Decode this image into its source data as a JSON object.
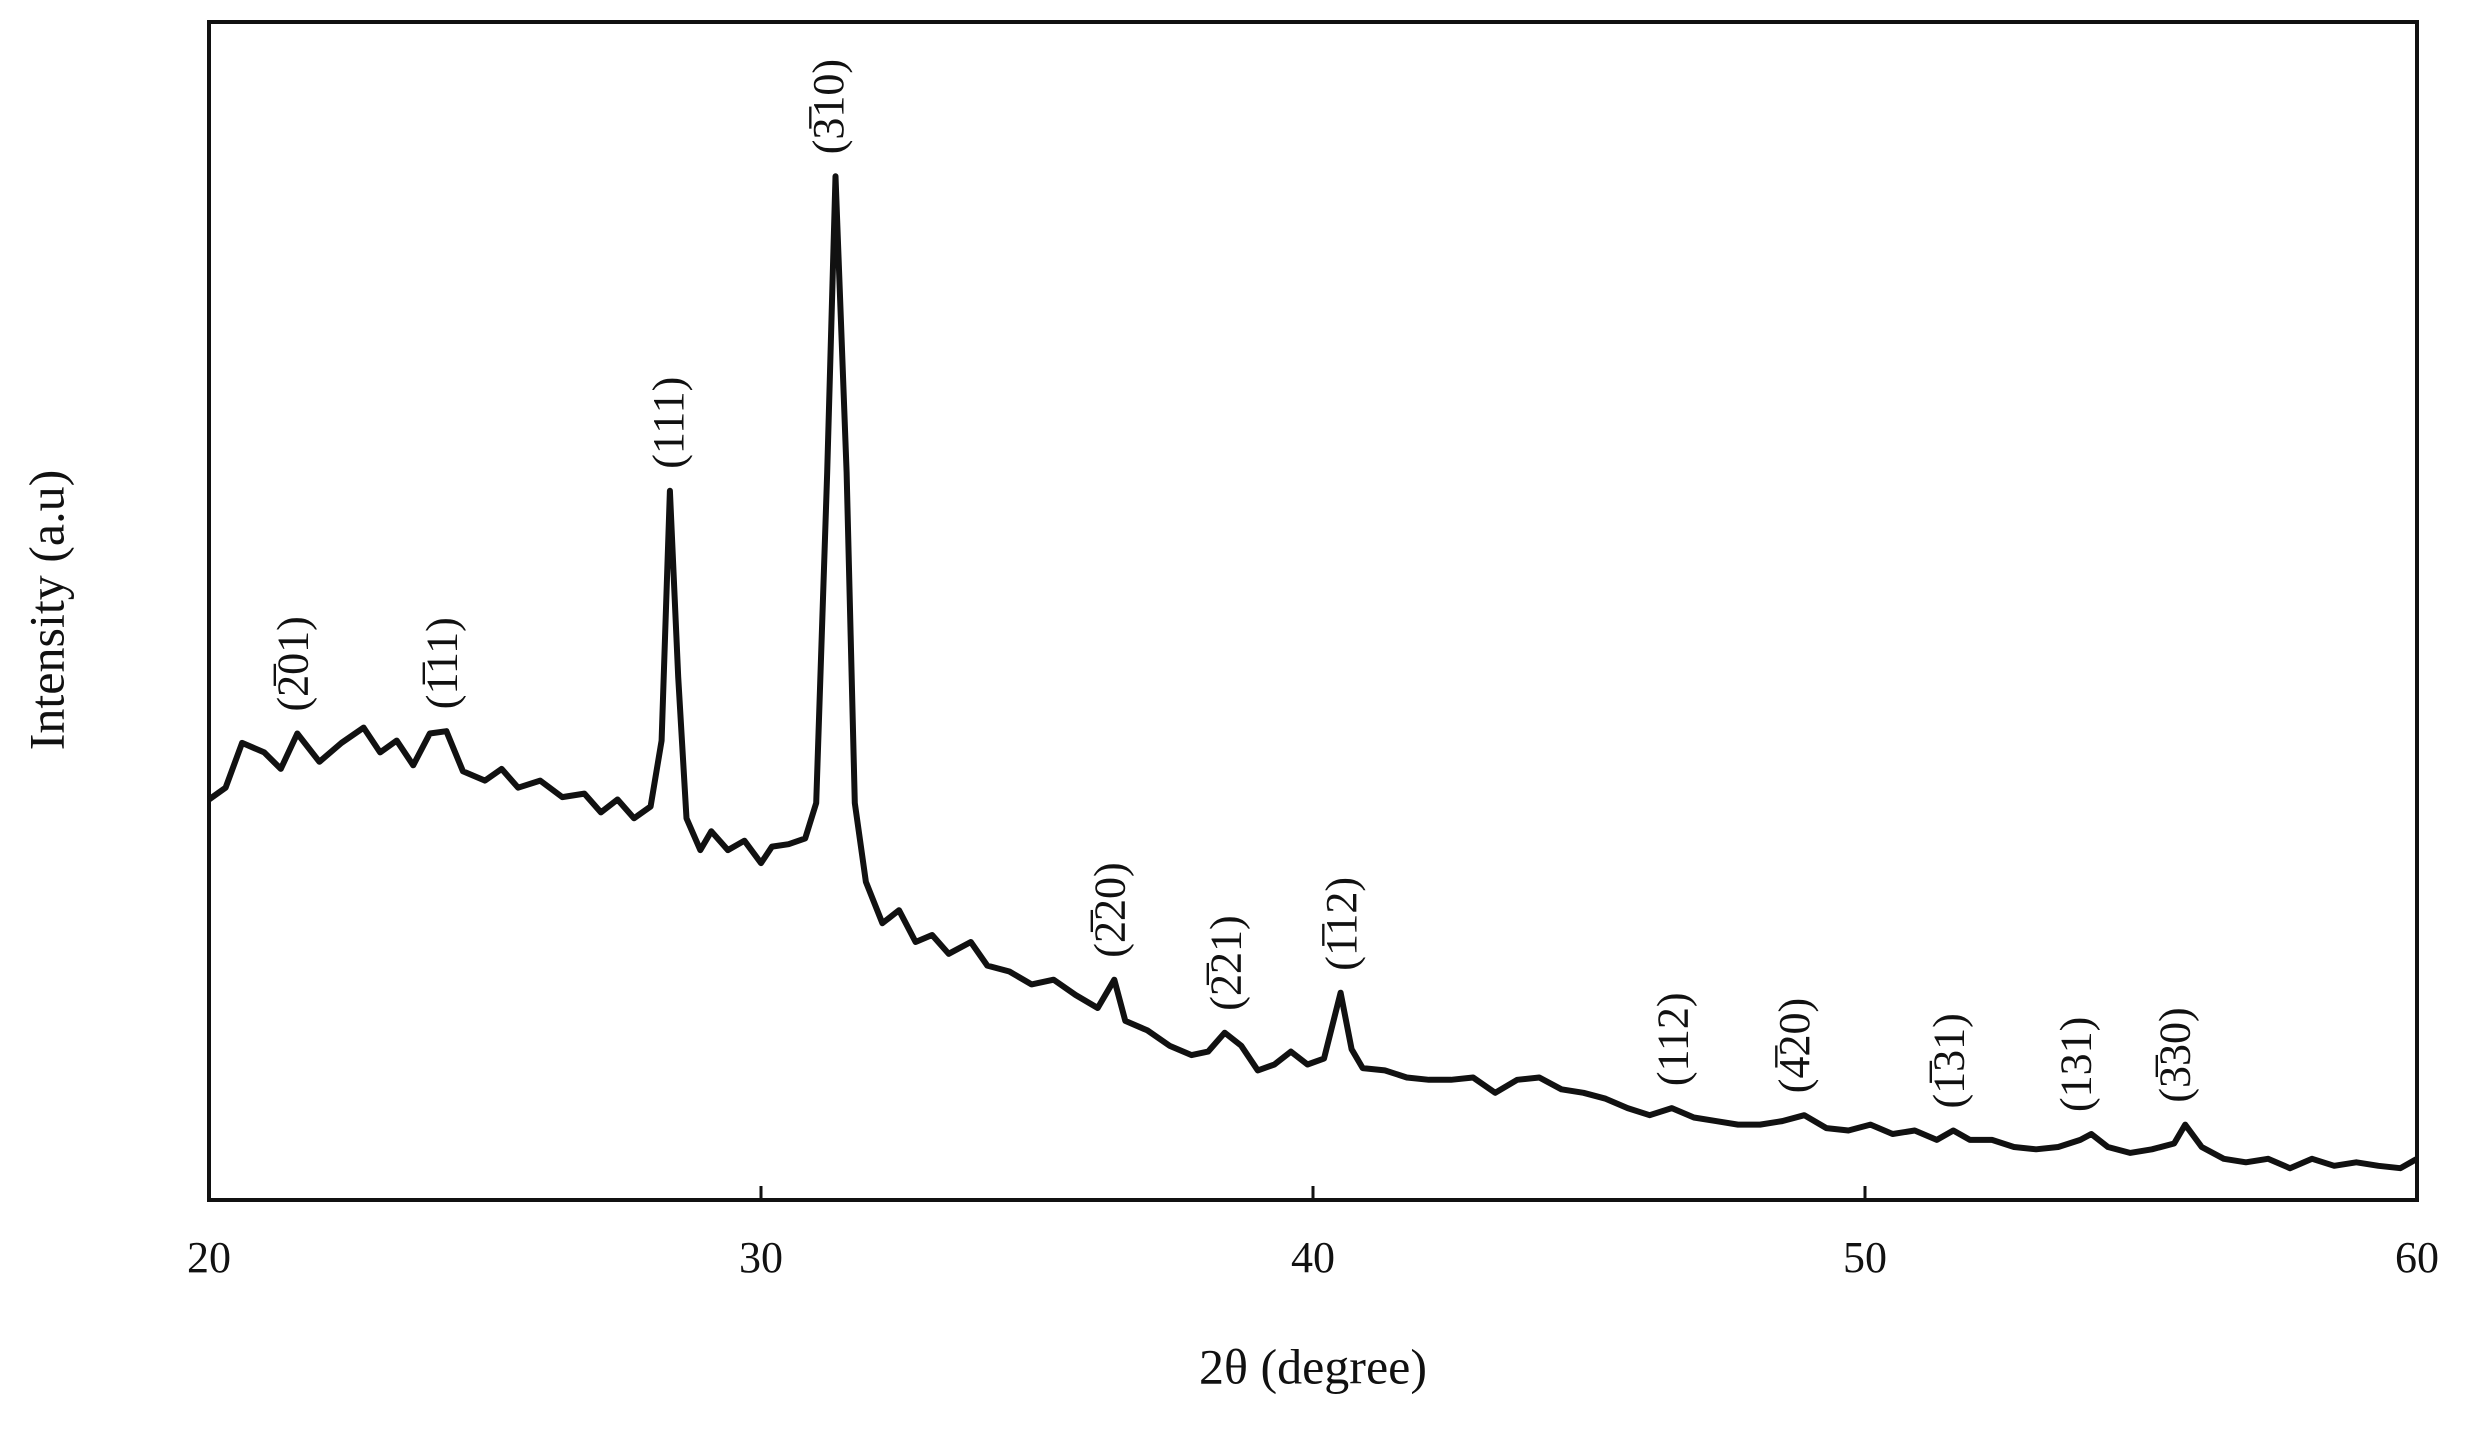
{
  "chart_data": {
    "type": "line",
    "x_label": "2θ (degree)",
    "y_label": "Intensity (a.u)",
    "xlim": [
      20,
      60
    ],
    "xticks": [
      20,
      30,
      40,
      50,
      60
    ],
    "ylim": [
      0,
      100
    ],
    "color": "#111111",
    "x": [
      20.0,
      20.3,
      20.6,
      21.0,
      21.3,
      21.6,
      22.0,
      22.4,
      22.8,
      23.1,
      23.4,
      23.7,
      24.0,
      24.3,
      24.6,
      25.0,
      25.3,
      25.6,
      26.0,
      26.4,
      26.8,
      27.1,
      27.4,
      27.7,
      28.0,
      28.2,
      28.35,
      28.5,
      28.65,
      28.9,
      29.1,
      29.4,
      29.7,
      30.0,
      30.2,
      30.5,
      30.8,
      31.0,
      31.2,
      31.35,
      31.55,
      31.7,
      31.9,
      32.2,
      32.5,
      32.8,
      33.1,
      33.4,
      33.8,
      34.1,
      34.5,
      34.9,
      35.3,
      35.7,
      36.1,
      36.4,
      36.6,
      37.0,
      37.4,
      37.8,
      38.1,
      38.4,
      38.7,
      39.0,
      39.3,
      39.6,
      39.9,
      40.2,
      40.5,
      40.7,
      40.9,
      41.3,
      41.7,
      42.1,
      42.5,
      42.9,
      43.3,
      43.7,
      44.1,
      44.5,
      44.9,
      45.3,
      45.7,
      46.1,
      46.5,
      46.9,
      47.3,
      47.7,
      48.1,
      48.5,
      48.9,
      49.3,
      49.7,
      50.1,
      50.5,
      50.9,
      51.3,
      51.6,
      51.9,
      52.3,
      52.7,
      53.1,
      53.5,
      53.9,
      54.1,
      54.4,
      54.8,
      55.2,
      55.6,
      55.8,
      56.1,
      56.5,
      56.9,
      57.3,
      57.7,
      58.1,
      58.5,
      58.9,
      59.3,
      59.7,
      60.0
    ],
    "values": [
      34.0,
      35.0,
      38.8,
      38.0,
      36.6,
      39.6,
      37.2,
      38.8,
      40.1,
      38.0,
      39.0,
      36.9,
      39.6,
      39.8,
      36.4,
      35.6,
      36.6,
      35.0,
      35.6,
      34.2,
      34.5,
      32.9,
      34.0,
      32.4,
      33.4,
      39.0,
      60.2,
      44.4,
      32.4,
      29.7,
      31.3,
      29.7,
      30.5,
      28.6,
      30.0,
      30.2,
      30.7,
      33.7,
      61.8,
      86.9,
      61.8,
      33.7,
      27.0,
      23.5,
      24.6,
      21.9,
      22.5,
      20.9,
      21.9,
      19.9,
      19.4,
      18.3,
      18.7,
      17.4,
      16.3,
      18.7,
      15.2,
      14.4,
      13.1,
      12.3,
      12.6,
      14.2,
      13.1,
      11.0,
      11.5,
      12.6,
      11.5,
      12.0,
      17.6,
      12.8,
      11.2,
      11.0,
      10.4,
      10.2,
      10.2,
      10.4,
      9.1,
      10.2,
      10.4,
      9.4,
      9.1,
      8.6,
      7.8,
      7.2,
      7.8,
      7.0,
      6.7,
      6.4,
      6.4,
      6.7,
      7.2,
      6.1,
      5.9,
      6.4,
      5.6,
      5.9,
      5.1,
      5.9,
      5.1,
      5.1,
      4.5,
      4.3,
      4.5,
      5.1,
      5.6,
      4.5,
      4.0,
      4.3,
      4.8,
      6.4,
      4.5,
      3.5,
      3.2,
      3.5,
      2.7,
      3.5,
      2.9,
      3.2,
      2.9,
      2.7,
      3.5
    ],
    "annotations": [
      {
        "text": "(2̅01)",
        "x": 21.6
      },
      {
        "text": "(1̅11)",
        "x": 24.3
      },
      {
        "text": "(111)",
        "x": 28.4
      },
      {
        "text": "(3̅10)",
        "x": 31.3
      },
      {
        "text": "(2̅20)",
        "x": 36.4
      },
      {
        "text": "(2̅21)",
        "x": 38.5
      },
      {
        "text": "(1̅12)",
        "x": 40.6
      },
      {
        "text": "(112)",
        "x": 46.6
      },
      {
        "text": "(4̅20)",
        "x": 48.8
      },
      {
        "text": "(1̅31)",
        "x": 51.6
      },
      {
        "text": "(131)",
        "x": 53.9
      },
      {
        "text": "(3̅30)",
        "x": 55.7
      }
    ]
  }
}
